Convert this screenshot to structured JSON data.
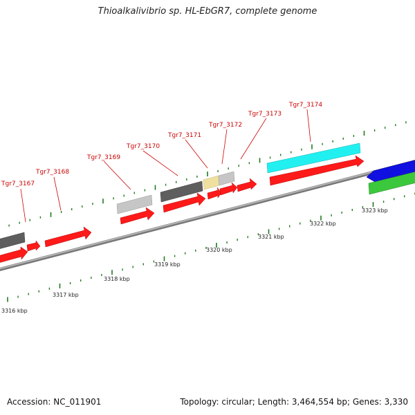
{
  "title": "Thioalkalivibrio sp. HL-EbGR7, complete genome",
  "footer": {
    "accession": "Accession: NC_011901",
    "topology": "Topology: circular; Length: 3,464,554 bp; Genes: 3,330"
  },
  "colors": {
    "cds_red": "#ff1a1a",
    "dark_gray": "#5e5e5e",
    "light_gray": "#c4c4c4",
    "pale_yellow": "#efe0a0",
    "cyan": "#22f0f0",
    "blue": "#1010e0",
    "green": "#3cc83c",
    "label_red": "#cc0000",
    "tick_green": "#1f7a1f",
    "backbone": "#8c8c8c"
  },
  "gene_labels": [
    "Tgr7_3167",
    "Tgr7_3168",
    "Tgr7_3169",
    "Tgr7_3170",
    "Tgr7_3171",
    "Tgr7_3172",
    "Tgr7_3173",
    "Tgr7_3174"
  ],
  "kbp_labels": [
    "3316 kbp",
    "3317 kbp",
    "3318 kbp",
    "3319 kbp",
    "3320 kbp",
    "3321 kbp",
    "3322 kbp",
    "3323 kbp"
  ]
}
